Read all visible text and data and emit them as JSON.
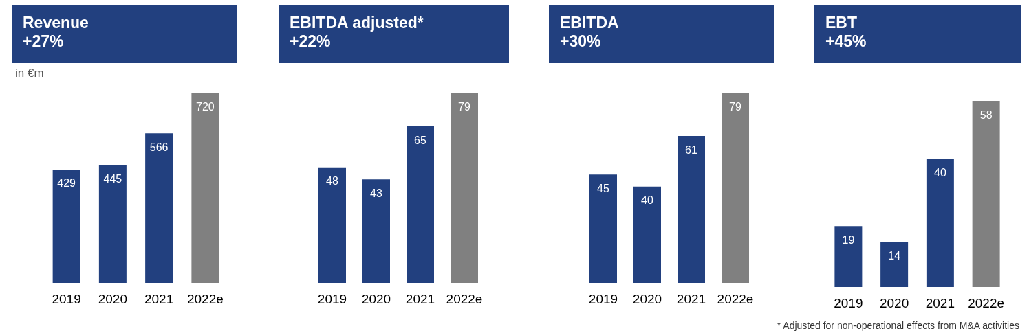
{
  "chart_data": [
    {
      "type": "bar",
      "title": "Revenue",
      "subtitle": "+27%",
      "ylabel": "in €m",
      "categories": [
        "2019",
        "2020",
        "2021",
        "2022e"
      ],
      "values": [
        429,
        445,
        566,
        720
      ],
      "colors": [
        "#22407f",
        "#22407f",
        "#22407f",
        "#808080"
      ],
      "data_labels": true,
      "grid": false
    },
    {
      "type": "bar",
      "title": "EBITDA adjusted*",
      "subtitle": "+22%",
      "categories": [
        "2019",
        "2020",
        "2021",
        "2022e"
      ],
      "values": [
        48,
        43,
        65,
        79
      ],
      "colors": [
        "#22407f",
        "#22407f",
        "#22407f",
        "#808080"
      ],
      "data_labels": true,
      "grid": false
    },
    {
      "type": "bar",
      "title": "EBITDA",
      "subtitle": "+30%",
      "categories": [
        "2019",
        "2020",
        "2021",
        "2022e"
      ],
      "values": [
        45,
        40,
        61,
        79
      ],
      "colors": [
        "#22407f",
        "#22407f",
        "#22407f",
        "#808080"
      ],
      "data_labels": true,
      "grid": false
    },
    {
      "type": "bar",
      "title": "EBT",
      "subtitle": "+45%",
      "categories": [
        "2019",
        "2020",
        "2021",
        "2022e"
      ],
      "values": [
        19,
        14,
        40,
        58
      ],
      "colors": [
        "#22407f",
        "#22407f",
        "#22407f",
        "#808080"
      ],
      "data_labels": true,
      "grid": false,
      "annotations": [
        "* Adjusted for non-operational effects from M&A activities"
      ]
    }
  ]
}
